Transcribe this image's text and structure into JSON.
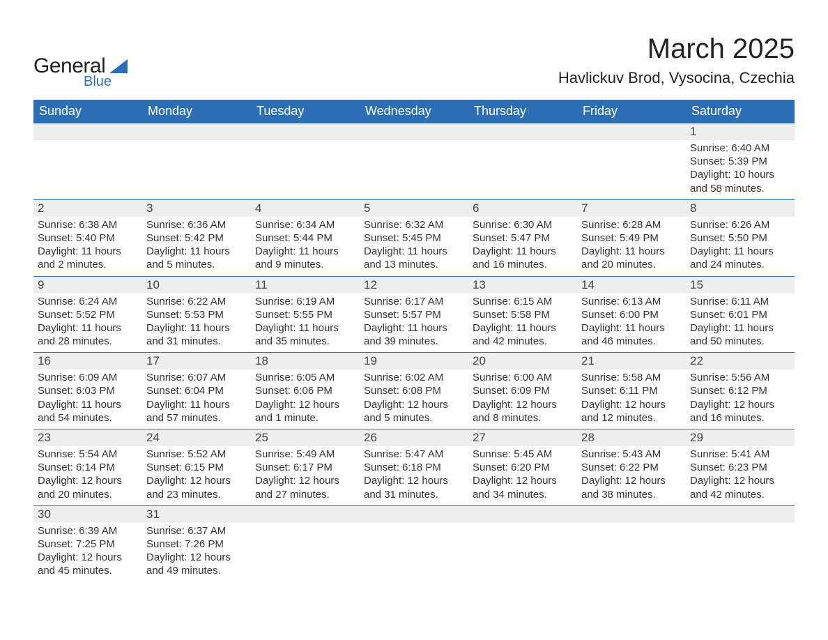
{
  "logo": {
    "text1": "General",
    "text2": "Blue",
    "accent": "#2d6fb6"
  },
  "title": "March 2025",
  "subtitle": "Havlickuv Brod, Vysocina, Czechia",
  "colors": {
    "header_bg": "#2d6fb6",
    "header_fg": "#ffffff",
    "daynum_bg": "#eeeeee",
    "row_border": "#2d6fb6",
    "text": "#333333",
    "page_bg": "#ffffff"
  },
  "typography": {
    "title_fontsize": 40,
    "subtitle_fontsize": 22,
    "th_fontsize": 18,
    "daynum_fontsize": 17,
    "body_fontsize": 15
  },
  "columns": [
    "Sunday",
    "Monday",
    "Tuesday",
    "Wednesday",
    "Thursday",
    "Friday",
    "Saturday"
  ],
  "start_day_index": 6,
  "weeks": [
    [
      null,
      null,
      null,
      null,
      null,
      null,
      {
        "n": "1",
        "sunrise": "Sunrise: 6:40 AM",
        "sunset": "Sunset: 5:39 PM",
        "daylight1": "Daylight: 10 hours",
        "daylight2": "and 58 minutes."
      }
    ],
    [
      {
        "n": "2",
        "sunrise": "Sunrise: 6:38 AM",
        "sunset": "Sunset: 5:40 PM",
        "daylight1": "Daylight: 11 hours",
        "daylight2": "and 2 minutes."
      },
      {
        "n": "3",
        "sunrise": "Sunrise: 6:36 AM",
        "sunset": "Sunset: 5:42 PM",
        "daylight1": "Daylight: 11 hours",
        "daylight2": "and 5 minutes."
      },
      {
        "n": "4",
        "sunrise": "Sunrise: 6:34 AM",
        "sunset": "Sunset: 5:44 PM",
        "daylight1": "Daylight: 11 hours",
        "daylight2": "and 9 minutes."
      },
      {
        "n": "5",
        "sunrise": "Sunrise: 6:32 AM",
        "sunset": "Sunset: 5:45 PM",
        "daylight1": "Daylight: 11 hours",
        "daylight2": "and 13 minutes."
      },
      {
        "n": "6",
        "sunrise": "Sunrise: 6:30 AM",
        "sunset": "Sunset: 5:47 PM",
        "daylight1": "Daylight: 11 hours",
        "daylight2": "and 16 minutes."
      },
      {
        "n": "7",
        "sunrise": "Sunrise: 6:28 AM",
        "sunset": "Sunset: 5:49 PM",
        "daylight1": "Daylight: 11 hours",
        "daylight2": "and 20 minutes."
      },
      {
        "n": "8",
        "sunrise": "Sunrise: 6:26 AM",
        "sunset": "Sunset: 5:50 PM",
        "daylight1": "Daylight: 11 hours",
        "daylight2": "and 24 minutes."
      }
    ],
    [
      {
        "n": "9",
        "sunrise": "Sunrise: 6:24 AM",
        "sunset": "Sunset: 5:52 PM",
        "daylight1": "Daylight: 11 hours",
        "daylight2": "and 28 minutes."
      },
      {
        "n": "10",
        "sunrise": "Sunrise: 6:22 AM",
        "sunset": "Sunset: 5:53 PM",
        "daylight1": "Daylight: 11 hours",
        "daylight2": "and 31 minutes."
      },
      {
        "n": "11",
        "sunrise": "Sunrise: 6:19 AM",
        "sunset": "Sunset: 5:55 PM",
        "daylight1": "Daylight: 11 hours",
        "daylight2": "and 35 minutes."
      },
      {
        "n": "12",
        "sunrise": "Sunrise: 6:17 AM",
        "sunset": "Sunset: 5:57 PM",
        "daylight1": "Daylight: 11 hours",
        "daylight2": "and 39 minutes."
      },
      {
        "n": "13",
        "sunrise": "Sunrise: 6:15 AM",
        "sunset": "Sunset: 5:58 PM",
        "daylight1": "Daylight: 11 hours",
        "daylight2": "and 42 minutes."
      },
      {
        "n": "14",
        "sunrise": "Sunrise: 6:13 AM",
        "sunset": "Sunset: 6:00 PM",
        "daylight1": "Daylight: 11 hours",
        "daylight2": "and 46 minutes."
      },
      {
        "n": "15",
        "sunrise": "Sunrise: 6:11 AM",
        "sunset": "Sunset: 6:01 PM",
        "daylight1": "Daylight: 11 hours",
        "daylight2": "and 50 minutes."
      }
    ],
    [
      {
        "n": "16",
        "sunrise": "Sunrise: 6:09 AM",
        "sunset": "Sunset: 6:03 PM",
        "daylight1": "Daylight: 11 hours",
        "daylight2": "and 54 minutes."
      },
      {
        "n": "17",
        "sunrise": "Sunrise: 6:07 AM",
        "sunset": "Sunset: 6:04 PM",
        "daylight1": "Daylight: 11 hours",
        "daylight2": "and 57 minutes."
      },
      {
        "n": "18",
        "sunrise": "Sunrise: 6:05 AM",
        "sunset": "Sunset: 6:06 PM",
        "daylight1": "Daylight: 12 hours",
        "daylight2": "and 1 minute."
      },
      {
        "n": "19",
        "sunrise": "Sunrise: 6:02 AM",
        "sunset": "Sunset: 6:08 PM",
        "daylight1": "Daylight: 12 hours",
        "daylight2": "and 5 minutes."
      },
      {
        "n": "20",
        "sunrise": "Sunrise: 6:00 AM",
        "sunset": "Sunset: 6:09 PM",
        "daylight1": "Daylight: 12 hours",
        "daylight2": "and 8 minutes."
      },
      {
        "n": "21",
        "sunrise": "Sunrise: 5:58 AM",
        "sunset": "Sunset: 6:11 PM",
        "daylight1": "Daylight: 12 hours",
        "daylight2": "and 12 minutes."
      },
      {
        "n": "22",
        "sunrise": "Sunrise: 5:56 AM",
        "sunset": "Sunset: 6:12 PM",
        "daylight1": "Daylight: 12 hours",
        "daylight2": "and 16 minutes."
      }
    ],
    [
      {
        "n": "23",
        "sunrise": "Sunrise: 5:54 AM",
        "sunset": "Sunset: 6:14 PM",
        "daylight1": "Daylight: 12 hours",
        "daylight2": "and 20 minutes."
      },
      {
        "n": "24",
        "sunrise": "Sunrise: 5:52 AM",
        "sunset": "Sunset: 6:15 PM",
        "daylight1": "Daylight: 12 hours",
        "daylight2": "and 23 minutes."
      },
      {
        "n": "25",
        "sunrise": "Sunrise: 5:49 AM",
        "sunset": "Sunset: 6:17 PM",
        "daylight1": "Daylight: 12 hours",
        "daylight2": "and 27 minutes."
      },
      {
        "n": "26",
        "sunrise": "Sunrise: 5:47 AM",
        "sunset": "Sunset: 6:18 PM",
        "daylight1": "Daylight: 12 hours",
        "daylight2": "and 31 minutes."
      },
      {
        "n": "27",
        "sunrise": "Sunrise: 5:45 AM",
        "sunset": "Sunset: 6:20 PM",
        "daylight1": "Daylight: 12 hours",
        "daylight2": "and 34 minutes."
      },
      {
        "n": "28",
        "sunrise": "Sunrise: 5:43 AM",
        "sunset": "Sunset: 6:22 PM",
        "daylight1": "Daylight: 12 hours",
        "daylight2": "and 38 minutes."
      },
      {
        "n": "29",
        "sunrise": "Sunrise: 5:41 AM",
        "sunset": "Sunset: 6:23 PM",
        "daylight1": "Daylight: 12 hours",
        "daylight2": "and 42 minutes."
      }
    ],
    [
      {
        "n": "30",
        "sunrise": "Sunrise: 6:39 AM",
        "sunset": "Sunset: 7:25 PM",
        "daylight1": "Daylight: 12 hours",
        "daylight2": "and 45 minutes."
      },
      {
        "n": "31",
        "sunrise": "Sunrise: 6:37 AM",
        "sunset": "Sunset: 7:26 PM",
        "daylight1": "Daylight: 12 hours",
        "daylight2": "and 49 minutes."
      },
      null,
      null,
      null,
      null,
      null
    ]
  ]
}
